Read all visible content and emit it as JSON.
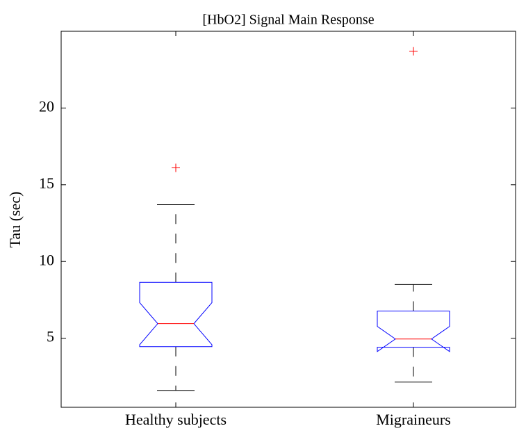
{
  "chart_data": {
    "type": "box",
    "title": "[HbO2] Signal Main Response",
    "y_label": "Tau (sec)",
    "categories": [
      "Healthy subjects",
      "Migraineurs"
    ],
    "boxes": [
      {
        "whisker_low": 1.6,
        "q1": 4.45,
        "notch_low": 4.58,
        "median": 5.95,
        "notch_high": 7.32,
        "q3": 8.64,
        "whisker_high": 13.7,
        "outliers": [
          16.1
        ]
      },
      {
        "whisker_low": 2.14,
        "q1": 4.41,
        "notch_low": 4.13,
        "median": 4.95,
        "notch_high": 5.77,
        "q3": 6.77,
        "whisker_high": 8.5,
        "outliers": [
          23.7
        ]
      }
    ],
    "box_color": "#0000ff",
    "median_color": "#ff0000",
    "whisker_color": "#000000",
    "outlier_color": "#ff0000",
    "ylim": [
      0.5,
      25
    ],
    "yticks": [
      5,
      10,
      15,
      20
    ]
  }
}
